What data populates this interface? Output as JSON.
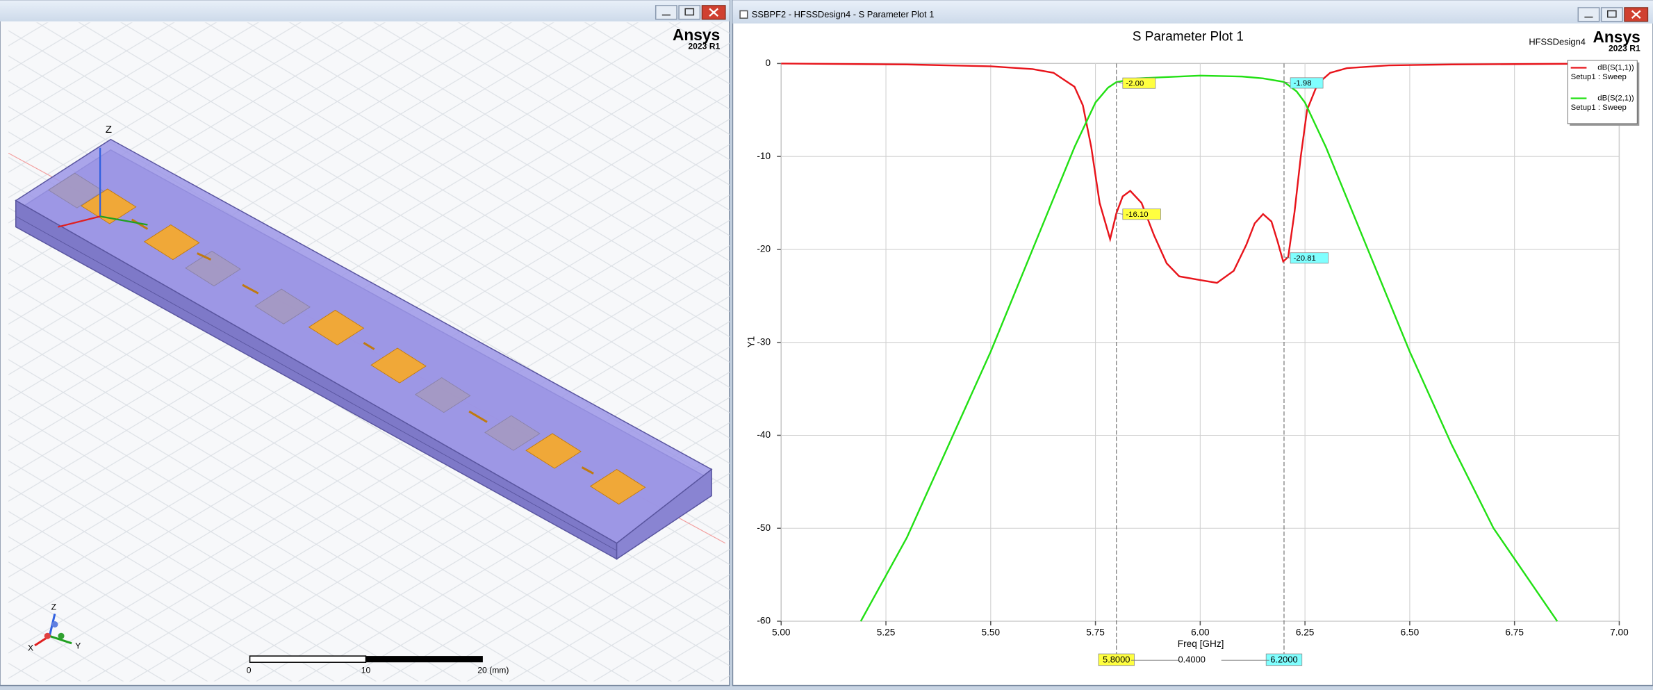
{
  "left_window": {
    "brand": "Ansys",
    "version": "2023 R1",
    "model_axis": "Z",
    "triad": [
      "Z",
      "X",
      "Y"
    ],
    "scale_bar": [
      "0",
      "10",
      "20 (mm)"
    ]
  },
  "right_window": {
    "title": "SSBPF2 - HFSSDesign4 - S Parameter Plot 1",
    "brand": "Ansys",
    "version": "2023 R1",
    "design": "HFSSDesign4"
  },
  "chart_data": {
    "type": "line",
    "title": "S Parameter Plot 1",
    "xlabel": "Freq [GHz]",
    "ylabel": "Y1",
    "xlim": [
      5,
      7
    ],
    "ylim": [
      -60,
      0
    ],
    "xticks": [
      {
        "value": 5,
        "label": "5.00"
      },
      {
        "value": 5.25,
        "label": "5.25"
      },
      {
        "value": 5.5,
        "label": "5.50"
      },
      {
        "value": 5.75,
        "label": "5.75"
      },
      {
        "value": 6,
        "label": "6.00"
      },
      {
        "value": 6.25,
        "label": "6.25"
      },
      {
        "value": 6.5,
        "label": "6.50"
      },
      {
        "value": 6.75,
        "label": "6.75"
      },
      {
        "value": 7,
        "label": "7.00"
      }
    ],
    "yticks": [
      0,
      -10,
      -20,
      -30,
      -40,
      -50,
      -60
    ],
    "grid": true,
    "legend": "upper right",
    "series": [
      {
        "name": "dB(S(1,1))",
        "setup": "Setup1 : Sweep",
        "color": "#e8141b",
        "x": [
          5,
          5.3,
          5.5,
          5.6,
          5.65,
          5.7,
          5.72,
          5.74,
          5.76,
          5.785,
          5.8,
          5.815,
          5.833,
          5.86,
          5.89,
          5.92,
          5.95,
          6,
          6.04,
          6.08,
          6.11,
          6.13,
          6.15,
          6.17,
          6.185,
          6.198,
          6.21,
          6.225,
          6.24,
          6.255,
          6.28,
          6.31,
          6.35,
          6.45,
          6.6,
          7
        ],
        "values": [
          0,
          -0.1,
          -0.3,
          -0.6,
          -1,
          -2.5,
          -4.5,
          -9,
          -15,
          -18.9,
          -16.1,
          -14.3,
          -13.7,
          -15,
          -18.5,
          -21.5,
          -22.9,
          -23.3,
          -23.6,
          -22.3,
          -19.5,
          -17.2,
          -16.2,
          -17,
          -19.2,
          -21.3,
          -20.81,
          -16,
          -10,
          -5,
          -2.2,
          -1,
          -0.5,
          -0.2,
          -0.1,
          0
        ]
      },
      {
        "name": "dB(S(2,1))",
        "setup": "Setup1 : Sweep",
        "color": "#22e014",
        "x": [
          5.19,
          5.3,
          5.4,
          5.5,
          5.6,
          5.7,
          5.75,
          5.78,
          5.8,
          5.85,
          5.9,
          6,
          6.1,
          6.15,
          6.2,
          6.23,
          6.25,
          6.3,
          6.4,
          6.5,
          6.6,
          6.7,
          6.852
        ],
        "values": [
          -60,
          -51,
          -41,
          -31,
          -20,
          -9,
          -4.2,
          -2.6,
          -2,
          -1.6,
          -1.5,
          -1.3,
          -1.4,
          -1.6,
          -1.98,
          -3,
          -4.2,
          -9,
          -20,
          -31,
          -41,
          -50,
          -60
        ]
      }
    ],
    "markers": [
      {
        "x": {
          "value": 5.8,
          "label": "5.8000"
        },
        "color": "#ffff40",
        "readouts": [
          {
            "value": -2,
            "label": "-2.00"
          },
          {
            "value": -16.1,
            "label": "-16.10"
          }
        ]
      },
      {
        "x": {
          "value": 6.2,
          "label": "6.2000"
        },
        "color": "#80ffff",
        "readouts": [
          {
            "value": -1.98,
            "label": "-1.98"
          },
          {
            "value": -20.81,
            "label": "-20.81"
          }
        ]
      }
    ],
    "marker_delta": {
      "value": 0.4,
      "label": "0.4000"
    }
  }
}
